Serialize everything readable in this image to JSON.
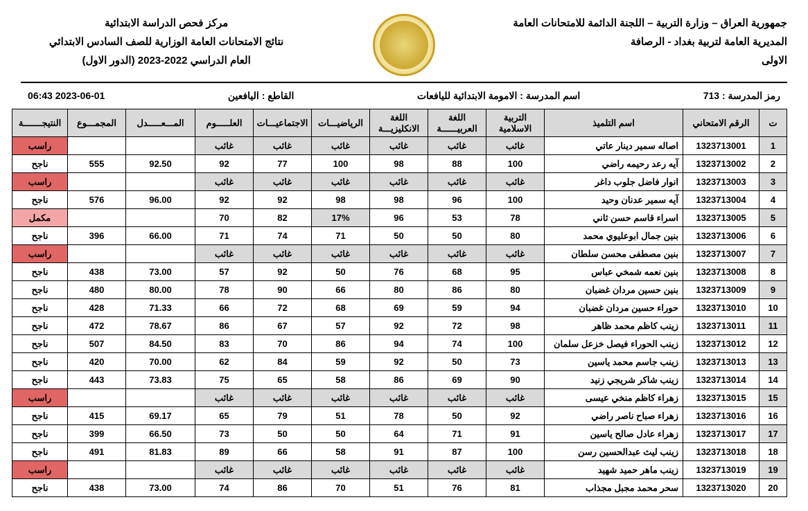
{
  "header": {
    "right_line1": "جمهورية العراق – وزارة التربية – اللجنة الدائمة للامتحانات العامة",
    "right_line2": "المديرية العامة لتربية بغداد - الرصافة",
    "right_line3": "الاولى",
    "left_line1": "مركز فحص الدراسة الابتدائية",
    "left_line2": "نتائج الامتحانات العامة الوزارية للصف السادس الابتدائي",
    "left_line3": "العام الدراسي  2022-2023 (الدور الاول)"
  },
  "subheader": {
    "school_code_label": "رمز المدرسة :",
    "school_code": "713",
    "school_name_label": "اسم المدرسة :",
    "school_name": "الامومة الابتدائية لليافعات",
    "sector_label": "القاطع :",
    "sector": "اليافعين",
    "timestamp": "2023-06-01 06:43"
  },
  "columns": {
    "idx": "ت",
    "exam_no": "الرقم الامتحاني",
    "student": "اسم التلميذ",
    "islamic": "التربية الاسلامية",
    "arabic": "اللغة العربيــــــة",
    "english": "اللغة الانكليزيـــة",
    "math": "الرياضيـــات",
    "social": "الاجتماعيـــات",
    "science": "العلـــــوم",
    "average": "المـــعـــــدل",
    "total": "المجمـــوع",
    "result": "النتيجـــــــة"
  },
  "absent_text": "غائب",
  "results": {
    "pass": "ناجح",
    "fail": "راسب",
    "supp": "مكمل"
  },
  "colors": {
    "header_bg": "#d9d9d9",
    "absent_bg": "#d9d9d9",
    "fail_bg": "#e06666",
    "supp_bg": "#f4a6a6",
    "border": "#000000",
    "text": "#000000",
    "background": "#ffffff"
  },
  "rows": [
    {
      "i": 1,
      "exam": "1323713001",
      "name": "اصاله سمير دينار عاتي",
      "s": [
        "A",
        "A",
        "A",
        "A",
        "A",
        "A"
      ],
      "avg": "",
      "tot": "",
      "res": "fail"
    },
    {
      "i": 2,
      "exam": "1323713002",
      "name": "آيه رعد رحيمه راضي",
      "s": [
        "100",
        "88",
        "98",
        "100",
        "77",
        "92"
      ],
      "avg": "92.50",
      "tot": "555",
      "res": "pass"
    },
    {
      "i": 3,
      "exam": "1323713003",
      "name": "انوار فاضل جلوب داغر",
      "s": [
        "A",
        "A",
        "A",
        "A",
        "A",
        "A"
      ],
      "avg": "",
      "tot": "",
      "res": "fail"
    },
    {
      "i": 4,
      "exam": "1323713004",
      "name": "آيه سمير عدنان وحيد",
      "s": [
        "100",
        "96",
        "98",
        "98",
        "92",
        "92"
      ],
      "avg": "96.00",
      "tot": "576",
      "res": "pass"
    },
    {
      "i": 5,
      "exam": "1323713005",
      "name": "اسراء قاسم حسن ثاني",
      "s": [
        "78",
        "53",
        "96",
        "17%",
        "82",
        "70"
      ],
      "avg": "",
      "tot": "",
      "res": "supp"
    },
    {
      "i": 6,
      "exam": "1323713006",
      "name": "بنين جمال ابوعليوي محمد",
      "s": [
        "80",
        "50",
        "50",
        "71",
        "74",
        "71"
      ],
      "avg": "66.00",
      "tot": "396",
      "res": "pass"
    },
    {
      "i": 7,
      "exam": "1323713007",
      "name": "بنين مصطفى محسن سلطان",
      "s": [
        "A",
        "A",
        "A",
        "A",
        "A",
        "A"
      ],
      "avg": "",
      "tot": "",
      "res": "fail"
    },
    {
      "i": 8,
      "exam": "1323713008",
      "name": "بنين نعمه شمخي عباس",
      "s": [
        "95",
        "68",
        "76",
        "50",
        "92",
        "57"
      ],
      "avg": "73.00",
      "tot": "438",
      "res": "pass"
    },
    {
      "i": 9,
      "exam": "1323713009",
      "name": "بنين حسين مردان غضبان",
      "s": [
        "80",
        "86",
        "80",
        "66",
        "90",
        "78"
      ],
      "avg": "80.00",
      "tot": "480",
      "res": "pass"
    },
    {
      "i": 10,
      "exam": "1323713010",
      "name": "حوراء حسين مردان غضبان",
      "s": [
        "94",
        "59",
        "69",
        "68",
        "72",
        "66"
      ],
      "avg": "71.33",
      "tot": "428",
      "res": "pass"
    },
    {
      "i": 11,
      "exam": "1323713011",
      "name": "زينب كاظم محمد ظاهر",
      "s": [
        "98",
        "72",
        "92",
        "57",
        "67",
        "86"
      ],
      "avg": "78.67",
      "tot": "472",
      "res": "pass"
    },
    {
      "i": 12,
      "exam": "1323713012",
      "name": "زينب الحوراء فيصل خزعل سلمان",
      "s": [
        "100",
        "74",
        "94",
        "86",
        "70",
        "83"
      ],
      "avg": "84.50",
      "tot": "507",
      "res": "pass"
    },
    {
      "i": 13,
      "exam": "1323713013",
      "name": "زينب جاسم محمد ياسين",
      "s": [
        "73",
        "50",
        "92",
        "59",
        "84",
        "62"
      ],
      "avg": "70.00",
      "tot": "420",
      "res": "pass"
    },
    {
      "i": 14,
      "exam": "1323713014",
      "name": "زينب شاكر شريجي زنيد",
      "s": [
        "90",
        "69",
        "86",
        "58",
        "65",
        "75"
      ],
      "avg": "73.83",
      "tot": "443",
      "res": "pass"
    },
    {
      "i": 15,
      "exam": "1323713015",
      "name": "زهراء كاظم منخي عيسى",
      "s": [
        "A",
        "A",
        "A",
        "A",
        "A",
        "A"
      ],
      "avg": "",
      "tot": "",
      "res": "fail"
    },
    {
      "i": 16,
      "exam": "1323713016",
      "name": "زهراء صباح ناصر راضي",
      "s": [
        "92",
        "50",
        "78",
        "51",
        "79",
        "65"
      ],
      "avg": "69.17",
      "tot": "415",
      "res": "pass"
    },
    {
      "i": 17,
      "exam": "1323713017",
      "name": "زهراء عادل صالح ياسين",
      "s": [
        "91",
        "71",
        "64",
        "50",
        "50",
        "73"
      ],
      "avg": "66.50",
      "tot": "399",
      "res": "pass"
    },
    {
      "i": 18,
      "exam": "1323713018",
      "name": "زينب ليث عبدالحسين رسن",
      "s": [
        "100",
        "87",
        "91",
        "58",
        "66",
        "89"
      ],
      "avg": "81.83",
      "tot": "491",
      "res": "pass"
    },
    {
      "i": 19,
      "exam": "1323713019",
      "name": "زينب ماهر حميد شهيد",
      "s": [
        "A",
        "A",
        "A",
        "A",
        "A",
        "A"
      ],
      "avg": "",
      "tot": "",
      "res": "fail"
    },
    {
      "i": 20,
      "exam": "1323713020",
      "name": "سحر محمد مجبل مجذاب",
      "s": [
        "81",
        "76",
        "51",
        "70",
        "86",
        "74"
      ],
      "avg": "73.00",
      "tot": "438",
      "res": "pass"
    }
  ]
}
